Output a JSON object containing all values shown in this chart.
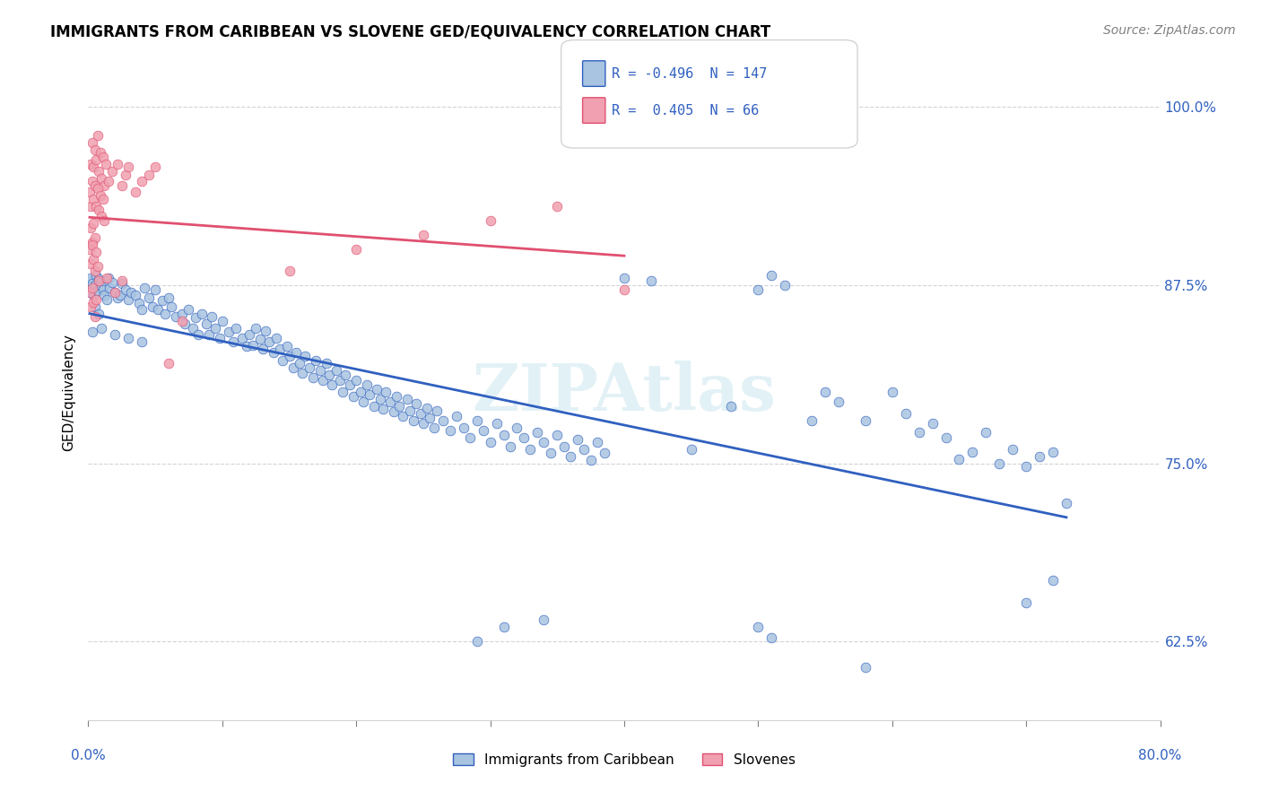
{
  "title": "IMMIGRANTS FROM CARIBBEAN VS SLOVENE GED/EQUIVALENCY CORRELATION CHART",
  "source": "Source: ZipAtlas.com",
  "ylabel": "GED/Equivalency",
  "ytick_values": [
    0.625,
    0.75,
    0.875,
    1.0
  ],
  "xlim": [
    0.0,
    0.8
  ],
  "ylim": [
    0.57,
    1.03
  ],
  "legend_r_blue": "-0.496",
  "legend_n_blue": "147",
  "legend_r_pink": "0.405",
  "legend_n_pink": "66",
  "blue_color": "#a8c4e0",
  "pink_color": "#f0a0b0",
  "blue_line_color": "#3060c0",
  "pink_line_color": "#e05070",
  "blue_points": [
    [
      0.001,
      0.878
    ],
    [
      0.001,
      0.872
    ],
    [
      0.002,
      0.88
    ],
    [
      0.003,
      0.876
    ],
    [
      0.002,
      0.87
    ],
    [
      0.005,
      0.875
    ],
    [
      0.004,
      0.868
    ],
    [
      0.006,
      0.882
    ],
    [
      0.007,
      0.871
    ],
    [
      0.008,
      0.879
    ],
    [
      0.005,
      0.86
    ],
    [
      0.009,
      0.877
    ],
    [
      0.01,
      0.874
    ],
    [
      0.011,
      0.872
    ],
    [
      0.012,
      0.868
    ],
    [
      0.008,
      0.855
    ],
    [
      0.015,
      0.88
    ],
    [
      0.016,
      0.873
    ],
    [
      0.014,
      0.865
    ],
    [
      0.018,
      0.877
    ],
    [
      0.02,
      0.87
    ],
    [
      0.022,
      0.866
    ],
    [
      0.025,
      0.876
    ],
    [
      0.024,
      0.868
    ],
    [
      0.028,
      0.872
    ],
    [
      0.03,
      0.865
    ],
    [
      0.032,
      0.87
    ],
    [
      0.035,
      0.868
    ],
    [
      0.038,
      0.862
    ],
    [
      0.04,
      0.858
    ],
    [
      0.042,
      0.873
    ],
    [
      0.045,
      0.866
    ],
    [
      0.048,
      0.86
    ],
    [
      0.05,
      0.872
    ],
    [
      0.052,
      0.858
    ],
    [
      0.055,
      0.864
    ],
    [
      0.057,
      0.855
    ],
    [
      0.06,
      0.866
    ],
    [
      0.062,
      0.86
    ],
    [
      0.065,
      0.853
    ],
    [
      0.003,
      0.842
    ],
    [
      0.01,
      0.845
    ],
    [
      0.02,
      0.84
    ],
    [
      0.03,
      0.838
    ],
    [
      0.04,
      0.835
    ],
    [
      0.07,
      0.855
    ],
    [
      0.072,
      0.848
    ],
    [
      0.075,
      0.858
    ],
    [
      0.078,
      0.845
    ],
    [
      0.08,
      0.852
    ],
    [
      0.082,
      0.84
    ],
    [
      0.085,
      0.855
    ],
    [
      0.088,
      0.848
    ],
    [
      0.09,
      0.84
    ],
    [
      0.092,
      0.853
    ],
    [
      0.095,
      0.845
    ],
    [
      0.098,
      0.838
    ],
    [
      0.1,
      0.85
    ],
    [
      0.105,
      0.842
    ],
    [
      0.108,
      0.835
    ],
    [
      0.11,
      0.845
    ],
    [
      0.115,
      0.838
    ],
    [
      0.118,
      0.832
    ],
    [
      0.12,
      0.84
    ],
    [
      0.123,
      0.833
    ],
    [
      0.125,
      0.845
    ],
    [
      0.128,
      0.837
    ],
    [
      0.13,
      0.83
    ],
    [
      0.132,
      0.843
    ],
    [
      0.135,
      0.835
    ],
    [
      0.138,
      0.828
    ],
    [
      0.14,
      0.838
    ],
    [
      0.143,
      0.83
    ],
    [
      0.145,
      0.822
    ],
    [
      0.148,
      0.832
    ],
    [
      0.15,
      0.825
    ],
    [
      0.153,
      0.817
    ],
    [
      0.155,
      0.828
    ],
    [
      0.158,
      0.82
    ],
    [
      0.16,
      0.813
    ],
    [
      0.162,
      0.825
    ],
    [
      0.165,
      0.817
    ],
    [
      0.168,
      0.81
    ],
    [
      0.17,
      0.822
    ],
    [
      0.173,
      0.815
    ],
    [
      0.175,
      0.808
    ],
    [
      0.178,
      0.82
    ],
    [
      0.18,
      0.812
    ],
    [
      0.182,
      0.805
    ],
    [
      0.185,
      0.815
    ],
    [
      0.188,
      0.808
    ],
    [
      0.19,
      0.8
    ],
    [
      0.192,
      0.812
    ],
    [
      0.195,
      0.805
    ],
    [
      0.198,
      0.797
    ],
    [
      0.2,
      0.808
    ],
    [
      0.203,
      0.8
    ],
    [
      0.205,
      0.793
    ],
    [
      0.208,
      0.805
    ],
    [
      0.21,
      0.798
    ],
    [
      0.213,
      0.79
    ],
    [
      0.215,
      0.802
    ],
    [
      0.218,
      0.795
    ],
    [
      0.22,
      0.788
    ],
    [
      0.222,
      0.8
    ],
    [
      0.225,
      0.793
    ],
    [
      0.228,
      0.786
    ],
    [
      0.23,
      0.797
    ],
    [
      0.232,
      0.79
    ],
    [
      0.235,
      0.783
    ],
    [
      0.238,
      0.795
    ],
    [
      0.24,
      0.787
    ],
    [
      0.243,
      0.78
    ],
    [
      0.245,
      0.792
    ],
    [
      0.248,
      0.785
    ],
    [
      0.25,
      0.778
    ],
    [
      0.253,
      0.789
    ],
    [
      0.255,
      0.782
    ],
    [
      0.258,
      0.775
    ],
    [
      0.26,
      0.787
    ],
    [
      0.265,
      0.78
    ],
    [
      0.27,
      0.773
    ],
    [
      0.275,
      0.783
    ],
    [
      0.28,
      0.775
    ],
    [
      0.285,
      0.768
    ],
    [
      0.29,
      0.78
    ],
    [
      0.295,
      0.773
    ],
    [
      0.3,
      0.765
    ],
    [
      0.305,
      0.778
    ],
    [
      0.31,
      0.77
    ],
    [
      0.315,
      0.762
    ],
    [
      0.32,
      0.775
    ],
    [
      0.325,
      0.768
    ],
    [
      0.33,
      0.76
    ],
    [
      0.335,
      0.772
    ],
    [
      0.34,
      0.765
    ],
    [
      0.345,
      0.757
    ],
    [
      0.35,
      0.77
    ],
    [
      0.355,
      0.762
    ],
    [
      0.36,
      0.755
    ],
    [
      0.365,
      0.767
    ],
    [
      0.37,
      0.76
    ],
    [
      0.375,
      0.752
    ],
    [
      0.38,
      0.765
    ],
    [
      0.385,
      0.757
    ],
    [
      0.4,
      0.88
    ],
    [
      0.42,
      0.878
    ],
    [
      0.45,
      0.76
    ],
    [
      0.48,
      0.79
    ],
    [
      0.5,
      0.872
    ],
    [
      0.51,
      0.882
    ],
    [
      0.52,
      0.875
    ],
    [
      0.54,
      0.78
    ],
    [
      0.55,
      0.8
    ],
    [
      0.56,
      0.793
    ],
    [
      0.58,
      0.78
    ],
    [
      0.6,
      0.8
    ],
    [
      0.61,
      0.785
    ],
    [
      0.62,
      0.772
    ],
    [
      0.63,
      0.778
    ],
    [
      0.64,
      0.768
    ],
    [
      0.65,
      0.753
    ],
    [
      0.66,
      0.758
    ],
    [
      0.67,
      0.772
    ],
    [
      0.68,
      0.75
    ],
    [
      0.69,
      0.76
    ],
    [
      0.7,
      0.748
    ],
    [
      0.71,
      0.755
    ],
    [
      0.72,
      0.758
    ],
    [
      0.29,
      0.625
    ],
    [
      0.31,
      0.635
    ],
    [
      0.34,
      0.64
    ],
    [
      0.5,
      0.635
    ],
    [
      0.51,
      0.628
    ],
    [
      0.58,
      0.607
    ],
    [
      0.7,
      0.652
    ],
    [
      0.72,
      0.668
    ],
    [
      0.73,
      0.722
    ]
  ],
  "pink_points": [
    [
      0.002,
      0.96
    ],
    [
      0.003,
      0.975
    ],
    [
      0.004,
      0.958
    ],
    [
      0.005,
      0.97
    ],
    [
      0.006,
      0.963
    ],
    [
      0.007,
      0.98
    ],
    [
      0.008,
      0.955
    ],
    [
      0.009,
      0.968
    ],
    [
      0.01,
      0.95
    ],
    [
      0.011,
      0.965
    ],
    [
      0.012,
      0.945
    ],
    [
      0.013,
      0.96
    ],
    [
      0.001,
      0.94
    ],
    [
      0.002,
      0.93
    ],
    [
      0.003,
      0.948
    ],
    [
      0.004,
      0.935
    ],
    [
      0.005,
      0.945
    ],
    [
      0.006,
      0.93
    ],
    [
      0.007,
      0.943
    ],
    [
      0.008,
      0.928
    ],
    [
      0.009,
      0.938
    ],
    [
      0.01,
      0.923
    ],
    [
      0.011,
      0.935
    ],
    [
      0.012,
      0.92
    ],
    [
      0.002,
      0.915
    ],
    [
      0.003,
      0.905
    ],
    [
      0.004,
      0.918
    ],
    [
      0.005,
      0.908
    ],
    [
      0.001,
      0.9
    ],
    [
      0.002,
      0.89
    ],
    [
      0.003,
      0.903
    ],
    [
      0.004,
      0.893
    ],
    [
      0.005,
      0.885
    ],
    [
      0.006,
      0.898
    ],
    [
      0.007,
      0.888
    ],
    [
      0.008,
      0.878
    ],
    [
      0.001,
      0.87
    ],
    [
      0.002,
      0.86
    ],
    [
      0.003,
      0.873
    ],
    [
      0.004,
      0.863
    ],
    [
      0.005,
      0.853
    ],
    [
      0.006,
      0.865
    ],
    [
      0.02,
      0.87
    ],
    [
      0.025,
      0.878
    ],
    [
      0.015,
      0.948
    ],
    [
      0.018,
      0.955
    ],
    [
      0.022,
      0.96
    ],
    [
      0.025,
      0.945
    ],
    [
      0.028,
      0.952
    ],
    [
      0.03,
      0.958
    ],
    [
      0.035,
      0.94
    ],
    [
      0.04,
      0.948
    ],
    [
      0.045,
      0.952
    ],
    [
      0.05,
      0.958
    ],
    [
      0.06,
      0.82
    ],
    [
      0.07,
      0.85
    ],
    [
      0.15,
      0.885
    ],
    [
      0.2,
      0.9
    ],
    [
      0.25,
      0.91
    ],
    [
      0.3,
      0.92
    ],
    [
      0.35,
      0.93
    ],
    [
      0.4,
      0.872
    ],
    [
      0.014,
      0.88
    ]
  ]
}
